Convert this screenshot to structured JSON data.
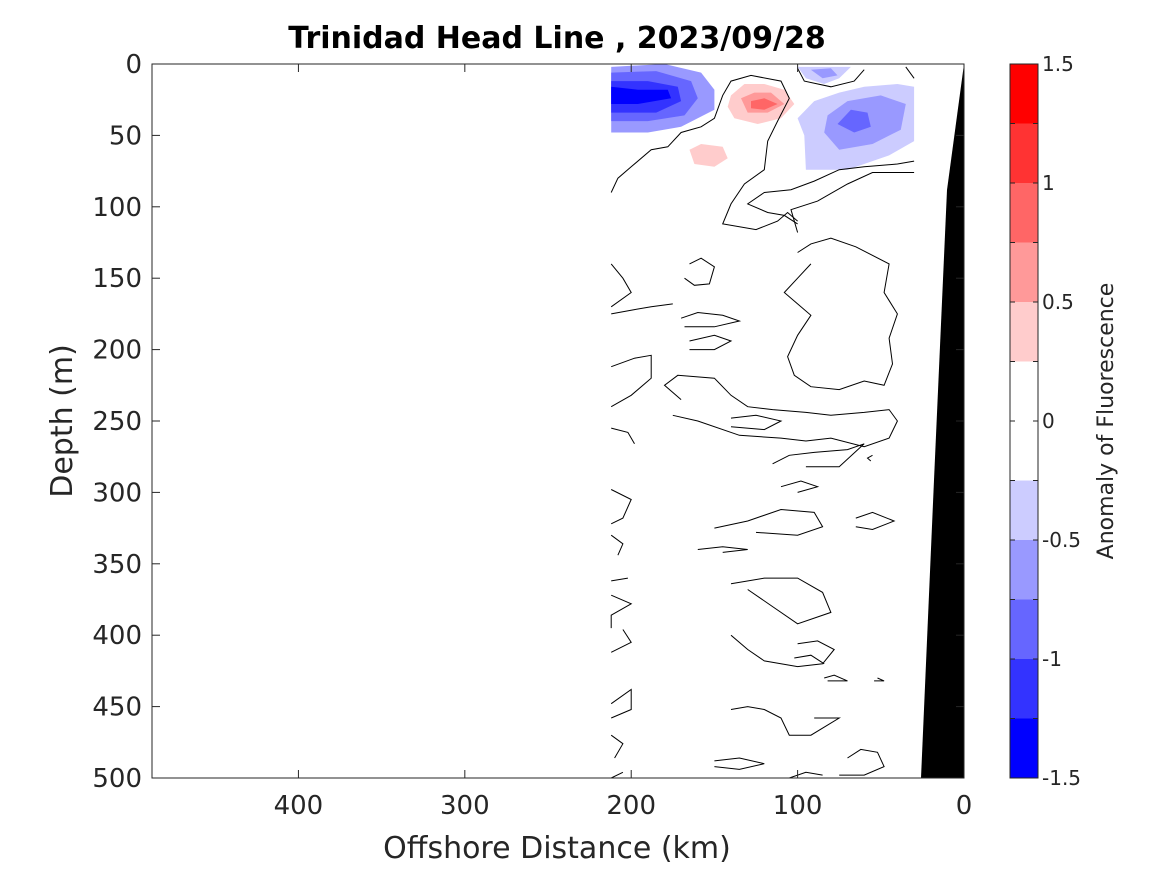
{
  "chart_data": {
    "type": "contour",
    "title": "Trinidad Head Line , 2023/09/28",
    "xlabel": "Offshore Distance (km)",
    "ylabel": "Depth (m)",
    "xlim": [
      488,
      0
    ],
    "ylim": [
      0,
      500
    ],
    "x_reversed": true,
    "y_reversed": true,
    "xticks": [
      400,
      300,
      200,
      100,
      0
    ],
    "xtick_labels": [
      "400",
      "300",
      "200",
      "100",
      "0"
    ],
    "yticks": [
      0,
      50,
      100,
      150,
      200,
      250,
      300,
      350,
      400,
      450,
      500
    ],
    "ytick_labels": [
      "0",
      "50",
      "100",
      "150",
      "200",
      "250",
      "300",
      "350",
      "400",
      "450",
      "500"
    ],
    "data_extent_x_km": [
      212,
      30
    ],
    "bottom_shelf_black": true,
    "colorbar": {
      "label": "Anomaly of Fluorescence",
      "range": [
        -1.5,
        1.5
      ],
      "levels": [
        -1.5,
        -1.25,
        -1.0,
        -0.75,
        -0.5,
        -0.25,
        0.25,
        0.5,
        0.75,
        1.0,
        1.25,
        1.5
      ],
      "ticks": [
        1.5,
        1,
        0.5,
        0,
        -0.5,
        -1,
        -1.5
      ],
      "tick_labels": [
        "1.5",
        "1",
        "0.5",
        "0",
        "-0.5",
        "-1",
        "-1.5"
      ],
      "colors_top_to_bottom": [
        "#ff0000",
        "#ff3333",
        "#ff6666",
        "#ff9999",
        "#ffcccc",
        "#ffffff",
        "#ffffff",
        "#ccccff",
        "#9999ff",
        "#6666ff",
        "#3333ff",
        "#0000ff"
      ]
    },
    "anomaly_features": [
      {
        "x": 200,
        "y": 22,
        "value": -1.3
      },
      {
        "x": 178,
        "y": 22,
        "value": -1.2
      },
      {
        "x": 120,
        "y": 30,
        "value": 1.1
      },
      {
        "x": 155,
        "y": 63,
        "value": 0.4
      },
      {
        "x": 90,
        "y": 8,
        "value": -0.6
      },
      {
        "x": 68,
        "y": 40,
        "value": -0.9
      },
      {
        "x": 50,
        "y": 20,
        "value": -0.5
      }
    ]
  }
}
